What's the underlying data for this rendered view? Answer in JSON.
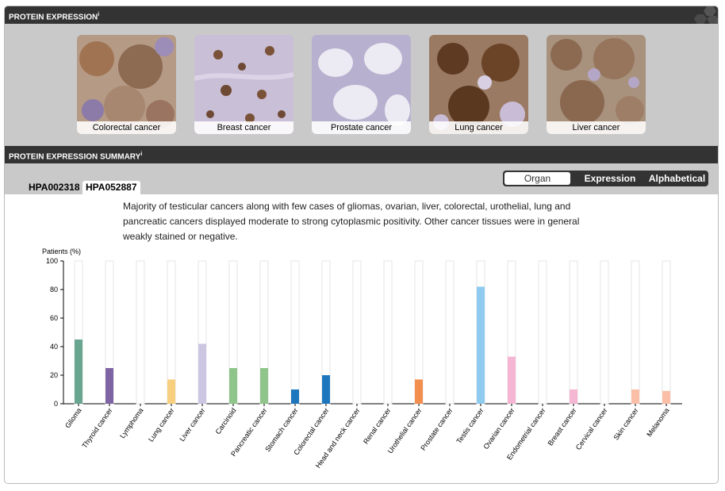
{
  "header": {
    "expression_title": "PROTEIN EXPRESSION",
    "summary_title": "PROTEIN EXPRESSION SUMMARY",
    "info_mark": "i"
  },
  "gallery": {
    "tiles": [
      {
        "label": "Colorectal cancer"
      },
      {
        "label": "Breast cancer"
      },
      {
        "label": "Prostate cancer"
      },
      {
        "label": "Lung cancer"
      },
      {
        "label": "Liver cancer"
      }
    ]
  },
  "antibodies": {
    "tab1": "HPA002318",
    "tab2": "HPA052887"
  },
  "sort_toggle": {
    "organ": "Organ",
    "expression": "Expression",
    "alphabetical": "Alphabetical"
  },
  "description": "Majority of testicular cancers along with few cases of gliomas, ovarian, liver, colorectal, urothelial, lung and pancreatic cancers displayed moderate to strong cytoplasmic positivity. Other cancer tissues were in general weakly stained or negative.",
  "chart_data": {
    "type": "bar",
    "ylabel": "Patients (%)",
    "ylim": [
      0,
      100
    ],
    "yticks": [
      0,
      20,
      40,
      60,
      80,
      100
    ],
    "categories": [
      "Glioma",
      "Thyroid cancer",
      "Lymphoma",
      "Lung cancer",
      "Liver cancer",
      "Carcinoid",
      "Pancreatic cancer",
      "Stomach cancer",
      "Colorectal cancer",
      "Head and neck cancer",
      "Renal cancer",
      "Urothelial cancer",
      "Prostate cancer",
      "Testis cancer",
      "Ovarian cancer",
      "Endometrial cancer",
      "Breast cancer",
      "Cervical cancer",
      "Skin cancer",
      "Melanoma"
    ],
    "values": [
      45,
      25,
      0,
      17,
      42,
      25,
      25,
      10,
      20,
      0,
      0,
      17,
      0,
      82,
      33,
      0,
      10,
      0,
      10,
      9
    ],
    "colors": [
      "#6aa68f",
      "#7f64a3",
      "#c2a6d4",
      "#f7cf7e",
      "#cdc6e3",
      "#8fc48a",
      "#8fc48a",
      "#1e76bd",
      "#1e76bd",
      "#9fd0a0",
      "#e8a76e",
      "#f28e4e",
      "#b0b0b0",
      "#8ecbef",
      "#f4b6d2",
      "#e6a6c8",
      "#f4b6d2",
      "#f6c3c6",
      "#fbbfa8",
      "#fbbfa8"
    ],
    "grid": false
  }
}
